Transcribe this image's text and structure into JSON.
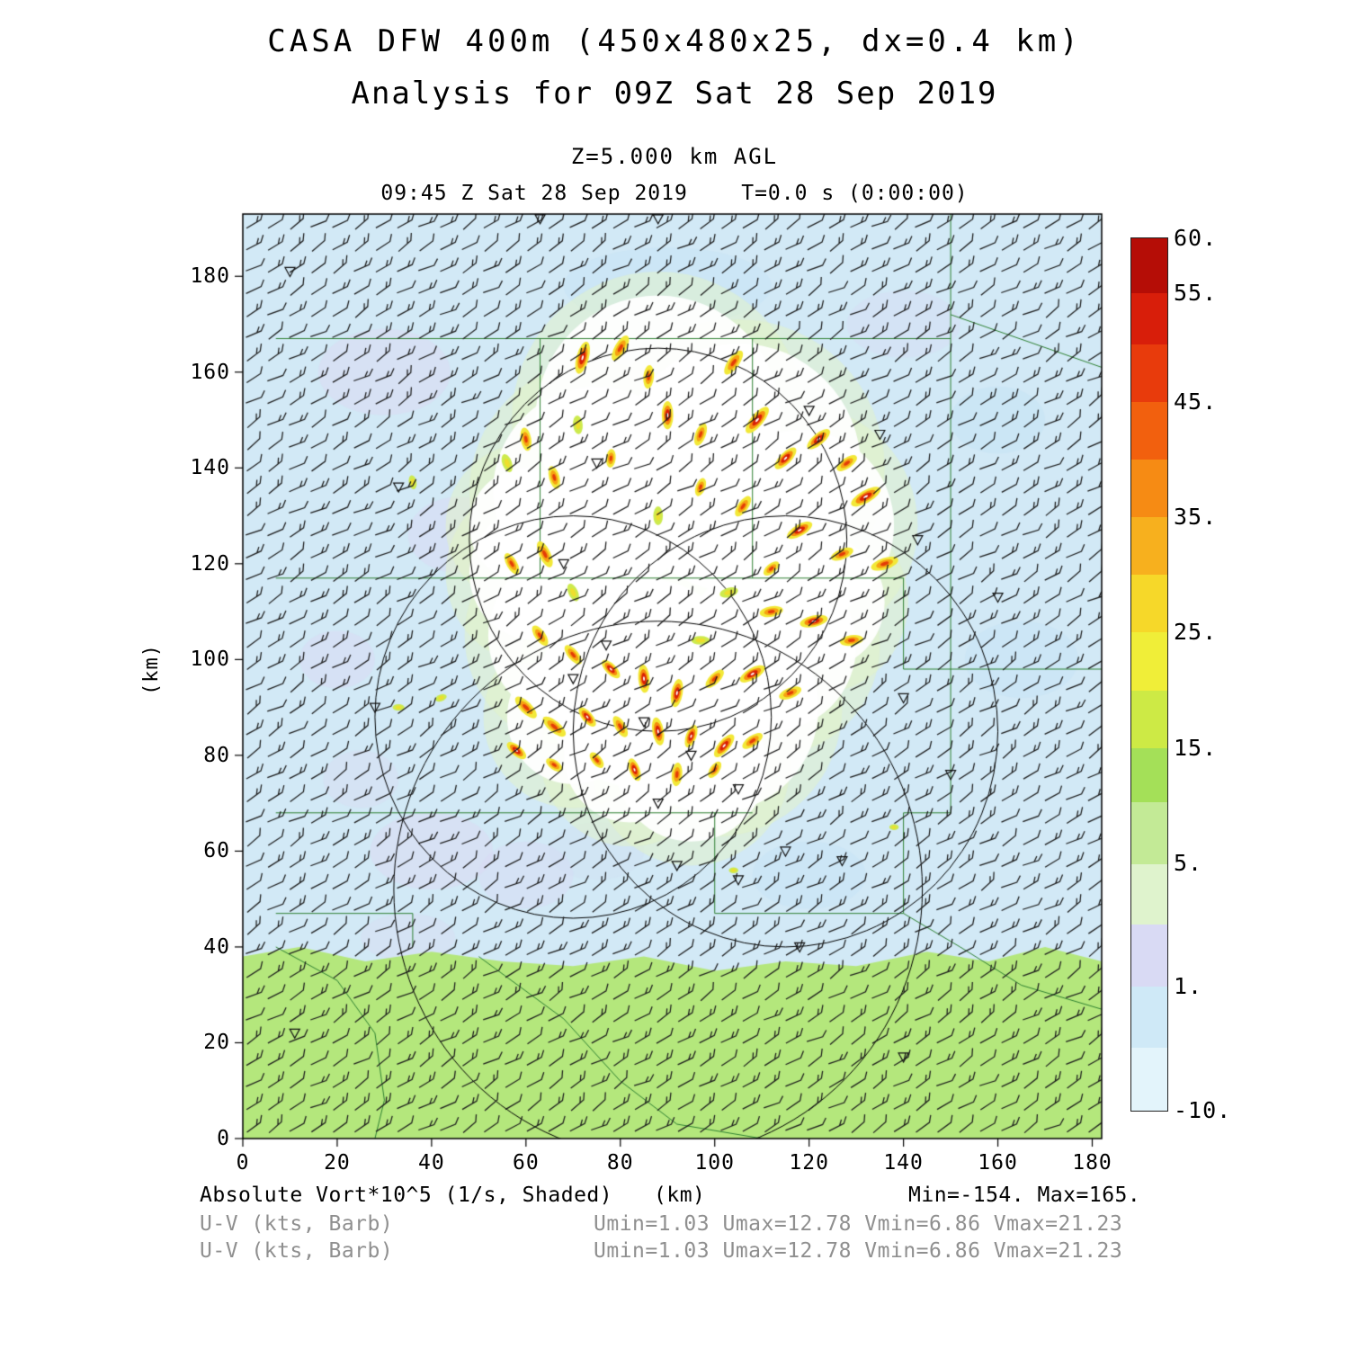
{
  "header": {
    "title": "CASA DFW 400m (450x480x25, dx=0.4 km)",
    "subtitle": "Analysis for 09Z Sat 28 Sep 2019",
    "level_label": "Z=5.000 km AGL",
    "time_label": "09:45 Z Sat 28 Sep 2019    T=0.0 s (0:00:00)"
  },
  "axes": {
    "y_label": "(km)",
    "x_unit": "(km)"
  },
  "footer": {
    "field_label": "Absolute Vort*10^5 (1/s, Shaded)",
    "x_unit": "(km)",
    "minmax": "Min=-154. Max=165.",
    "barb_label_1": "U-V (kts, Barb)",
    "barb_stats_1": "Umin=1.03 Umax=12.78 Vmin=6.86 Vmax=21.23",
    "barb_label_2": "U-V (kts, Barb)",
    "barb_stats_2": "Umin=1.03 Umax=12.78 Vmin=6.86 Vmax=21.23"
  },
  "chart_data": {
    "type": "heatmap",
    "title": "CASA DFW 400m (450x480x25, dx=0.4 km)",
    "subtitle": "Analysis for 09Z Sat 28 Sep 2019",
    "level": "Z=5.000 km AGL",
    "valid_time": "09:45 Z Sat 28 Sep 2019",
    "forecast_time": "T=0.0 s (0:00:00)",
    "xlabel": "(km)",
    "ylabel": "(km)",
    "x_range": [
      0,
      182
    ],
    "y_range": [
      0,
      193
    ],
    "x_ticks": [
      0,
      20,
      40,
      60,
      80,
      100,
      120,
      140,
      160,
      180
    ],
    "y_ticks": [
      0,
      20,
      40,
      60,
      80,
      100,
      120,
      140,
      160,
      180
    ],
    "field": {
      "name": "Absolute Vort*10^5 (1/s, Shaded)",
      "min": -154,
      "max": 165
    },
    "wind": {
      "name": "U-V (kts, Barb)",
      "umin": 1.03,
      "umax": 12.78,
      "vmin": 6.86,
      "vmax": 21.23
    },
    "colorbar": {
      "labels": [
        {
          "text": "60.",
          "f": 1.0
        },
        {
          "text": "55.",
          "f": 0.937
        },
        {
          "text": "45.",
          "f": 0.812
        },
        {
          "text": "35.",
          "f": 0.68
        },
        {
          "text": "25.",
          "f": 0.548
        },
        {
          "text": "15.",
          "f": 0.415
        },
        {
          "text": "5.",
          "f": 0.283
        },
        {
          "text": "1.",
          "f": 0.142
        },
        {
          "text": "-10.",
          "f": 0.0
        }
      ],
      "segments": [
        {
          "color": "#e3f4fb",
          "from": 0.0,
          "to": 0.072
        },
        {
          "color": "#cfe9f7",
          "from": 0.072,
          "to": 0.142
        },
        {
          "color": "#d9daf4",
          "from": 0.142,
          "to": 0.213
        },
        {
          "color": "#dff3cd",
          "from": 0.213,
          "to": 0.283
        },
        {
          "color": "#c3ea96",
          "from": 0.283,
          "to": 0.354
        },
        {
          "color": "#a4e058",
          "from": 0.354,
          "to": 0.415
        },
        {
          "color": "#cdea45",
          "from": 0.415,
          "to": 0.481
        },
        {
          "color": "#f0ee38",
          "from": 0.481,
          "to": 0.548
        },
        {
          "color": "#f6d829",
          "from": 0.548,
          "to": 0.614
        },
        {
          "color": "#f7b01e",
          "from": 0.614,
          "to": 0.68
        },
        {
          "color": "#f68b14",
          "from": 0.68,
          "to": 0.746
        },
        {
          "color": "#f2600e",
          "from": 0.746,
          "to": 0.812
        },
        {
          "color": "#e83b0c",
          "from": 0.812,
          "to": 0.878
        },
        {
          "color": "#d81e0a",
          "from": 0.878,
          "to": 0.937
        },
        {
          "color": "#b50d06",
          "from": 0.937,
          "to": 1.0
        }
      ]
    },
    "background_color": "#d2e9f6",
    "bg_patches": [
      [
        30,
        160,
        14,
        9,
        "#dadaf3",
        0.55
      ],
      [
        46,
        126,
        11,
        8,
        "#dadaf3",
        0.5
      ],
      [
        20,
        100,
        8,
        6,
        "#dadaf3",
        0.5
      ],
      [
        40,
        60,
        13,
        8,
        "#dadaf3",
        0.55
      ],
      [
        25,
        75,
        8,
        6,
        "#dadaf3",
        0.4
      ],
      [
        60,
        55,
        10,
        7,
        "#dadaf3",
        0.45
      ],
      [
        160,
        150,
        10,
        7,
        "#c6e4f5",
        0.6
      ],
      [
        90,
        178,
        22,
        8,
        "#c6e4f5",
        0.5
      ],
      [
        140,
        170,
        12,
        7,
        "#dadaf3",
        0.35
      ],
      [
        165,
        100,
        12,
        8,
        "#c6e4f5",
        0.5
      ],
      [
        120,
        55,
        12,
        7,
        "#c6e4f5",
        0.5
      ],
      [
        75,
        60,
        10,
        6,
        "#cfdef2",
        0.4
      ],
      [
        35,
        42,
        10,
        5,
        "#dadaf3",
        0.4
      ]
    ],
    "lowland": {
      "color": "#b4e77c",
      "polygon": [
        [
          0,
          0
        ],
        [
          0,
          38
        ],
        [
          12,
          40
        ],
        [
          26,
          37
        ],
        [
          40,
          39
        ],
        [
          55,
          37
        ],
        [
          70,
          36
        ],
        [
          85,
          38
        ],
        [
          100,
          35
        ],
        [
          115,
          37
        ],
        [
          130,
          36
        ],
        [
          145,
          39
        ],
        [
          158,
          37
        ],
        [
          170,
          40
        ],
        [
          182,
          37
        ],
        [
          182,
          0
        ]
      ]
    },
    "county_color": "#2f8132",
    "county_lines": [
      [
        [
          7,
          167
        ],
        [
          150,
          167
        ]
      ],
      [
        [
          63,
          167
        ],
        [
          63,
          117
        ]
      ],
      [
        [
          7,
          117
        ],
        [
          108,
          117
        ]
      ],
      [
        [
          108,
          167
        ],
        [
          108,
          117
        ]
      ],
      [
        [
          150,
          193
        ],
        [
          150,
          68
        ]
      ],
      [
        [
          150,
          98
        ],
        [
          182,
          98
        ]
      ],
      [
        [
          108,
          117
        ],
        [
          140,
          117
        ],
        [
          140,
          98
        ],
        [
          150,
          98
        ]
      ],
      [
        [
          150,
          172
        ],
        [
          182,
          161
        ]
      ],
      [
        [
          7,
          68
        ],
        [
          108,
          68
        ]
      ],
      [
        [
          100,
          68
        ],
        [
          100,
          47
        ],
        [
          140,
          47
        ],
        [
          140,
          68
        ],
        [
          150,
          68
        ]
      ],
      [
        [
          7,
          47
        ],
        [
          36,
          47
        ],
        [
          36,
          40
        ]
      ],
      [
        [
          7,
          40
        ],
        [
          20,
          33
        ],
        [
          28,
          22
        ],
        [
          30,
          8
        ],
        [
          28,
          0
        ]
      ],
      [
        [
          50,
          38
        ],
        [
          68,
          25
        ],
        [
          80,
          12
        ],
        [
          92,
          3
        ],
        [
          110,
          0
        ]
      ],
      [
        [
          140,
          47
        ],
        [
          152,
          40
        ],
        [
          165,
          32
        ],
        [
          182,
          27
        ]
      ]
    ],
    "range_circles": [
      [
        88,
        125,
        40
      ],
      [
        70,
        88,
        42
      ],
      [
        115,
        85,
        45
      ],
      [
        88,
        52,
        56
      ]
    ],
    "white_region": [
      [
        88,
        150,
        26
      ],
      [
        75,
        135,
        22
      ],
      [
        105,
        140,
        26
      ],
      [
        118,
        128,
        20
      ],
      [
        92,
        118,
        26
      ],
      [
        62,
        118,
        14
      ],
      [
        70,
        105,
        18
      ],
      [
        85,
        95,
        22
      ],
      [
        100,
        90,
        22
      ],
      [
        112,
        103,
        18
      ],
      [
        70,
        88,
        14
      ],
      [
        95,
        78,
        16
      ],
      [
        82,
        80,
        14
      ],
      [
        60,
        128,
        12
      ],
      [
        122,
        112,
        14
      ]
    ],
    "blobs": [
      [
        72,
        163,
        75,
        7,
        2.6,
        3
      ],
      [
        80,
        165,
        60,
        6,
        2.4,
        2
      ],
      [
        86,
        159,
        85,
        5,
        2.2,
        2
      ],
      [
        90,
        151,
        90,
        6,
        2.4,
        3
      ],
      [
        97,
        147,
        70,
        5,
        2.2,
        2
      ],
      [
        104,
        162,
        55,
        6,
        2.4,
        2
      ],
      [
        109,
        150,
        50,
        7,
        2.6,
        3
      ],
      [
        115,
        142,
        45,
        6,
        2.4,
        3
      ],
      [
        122,
        146,
        40,
        6,
        2.4,
        3
      ],
      [
        128,
        141,
        35,
        5,
        2.2,
        2
      ],
      [
        132,
        134,
        30,
        7,
        2.6,
        3
      ],
      [
        60,
        146,
        100,
        5,
        2.2,
        2
      ],
      [
        66,
        138,
        105,
        5,
        2.2,
        2
      ],
      [
        71,
        149,
        95,
        4,
        2,
        1
      ],
      [
        56,
        141,
        110,
        4,
        2,
        1
      ],
      [
        78,
        142,
        85,
        4,
        2,
        2
      ],
      [
        97,
        136,
        70,
        4,
        2,
        2
      ],
      [
        106,
        132,
        55,
        5,
        2.2,
        2
      ],
      [
        88,
        130,
        90,
        4,
        2,
        1
      ],
      [
        118,
        127,
        30,
        6,
        2.4,
        3
      ],
      [
        127,
        122,
        22,
        5,
        2.2,
        2
      ],
      [
        136,
        120,
        18,
        6,
        2.4,
        2
      ],
      [
        112,
        119,
        40,
        4,
        2,
        2
      ],
      [
        64,
        122,
        115,
        6,
        2.4,
        2
      ],
      [
        57,
        120,
        120,
        5,
        2.2,
        2
      ],
      [
        70,
        114,
        115,
        4,
        2,
        1
      ],
      [
        36,
        137,
        100,
        3,
        1.6,
        1
      ],
      [
        103,
        114,
        15,
        4,
        2,
        1
      ],
      [
        112,
        110,
        10,
        5,
        2.2,
        2
      ],
      [
        121,
        108,
        12,
        6,
        2.4,
        3
      ],
      [
        129,
        104,
        8,
        5,
        2.2,
        2
      ],
      [
        97,
        104,
        0,
        4,
        1.8,
        1
      ],
      [
        63,
        105,
        125,
        5,
        2.2,
        2
      ],
      [
        70,
        101,
        130,
        5,
        2.2,
        2
      ],
      [
        78,
        98,
        135,
        5,
        2.2,
        3
      ],
      [
        85,
        96,
        95,
        6,
        2.4,
        3
      ],
      [
        92,
        93,
        80,
        6,
        2.4,
        3
      ],
      [
        100,
        96,
        45,
        5,
        2.2,
        2
      ],
      [
        108,
        97,
        30,
        6,
        2.4,
        3
      ],
      [
        116,
        93,
        22,
        5,
        2.2,
        2
      ],
      [
        60,
        90,
        135,
        6,
        2.4,
        2
      ],
      [
        66,
        86,
        140,
        6,
        2.4,
        2
      ],
      [
        73,
        88,
        130,
        5,
        2.2,
        3
      ],
      [
        80,
        86,
        120,
        5,
        2.2,
        2
      ],
      [
        88,
        85,
        100,
        6,
        2.4,
        3
      ],
      [
        95,
        84,
        70,
        5,
        2.2,
        3
      ],
      [
        102,
        82,
        50,
        6,
        2.4,
        3
      ],
      [
        58,
        81,
        140,
        5,
        2.2,
        3
      ],
      [
        66,
        78,
        145,
        4,
        2,
        2
      ],
      [
        75,
        79,
        130,
        4,
        2,
        2
      ],
      [
        83,
        77,
        110,
        5,
        2.2,
        3
      ],
      [
        92,
        76,
        85,
        5,
        2.2,
        2
      ],
      [
        100,
        77,
        55,
        4,
        2,
        2
      ],
      [
        108,
        83,
        35,
        5,
        2.2,
        2
      ],
      [
        33,
        90,
        0,
        2.5,
        1.4,
        1
      ],
      [
        42,
        92,
        20,
        2.5,
        1.4,
        1
      ],
      [
        138,
        65,
        0,
        2,
        1.2,
        1
      ],
      [
        104,
        56,
        0,
        2,
        1.2,
        1
      ]
    ],
    "station_markers": [
      [
        10,
        181
      ],
      [
        63,
        192
      ],
      [
        88,
        192
      ],
      [
        33,
        136
      ],
      [
        28,
        90
      ],
      [
        120,
        152
      ],
      [
        135,
        147
      ],
      [
        75,
        141
      ],
      [
        68,
        120
      ],
      [
        77,
        103
      ],
      [
        70,
        96
      ],
      [
        85,
        87
      ],
      [
        95,
        80
      ],
      [
        105,
        73
      ],
      [
        88,
        70
      ],
      [
        115,
        60
      ],
      [
        127,
        58
      ],
      [
        105,
        54
      ],
      [
        140,
        92
      ],
      [
        143,
        125
      ],
      [
        160,
        113
      ],
      [
        150,
        76
      ],
      [
        118,
        40
      ],
      [
        92,
        57
      ],
      [
        11,
        22
      ],
      [
        140,
        17
      ]
    ],
    "barbs": {
      "spacing_px": 24,
      "color": "#1c1c1c"
    }
  }
}
